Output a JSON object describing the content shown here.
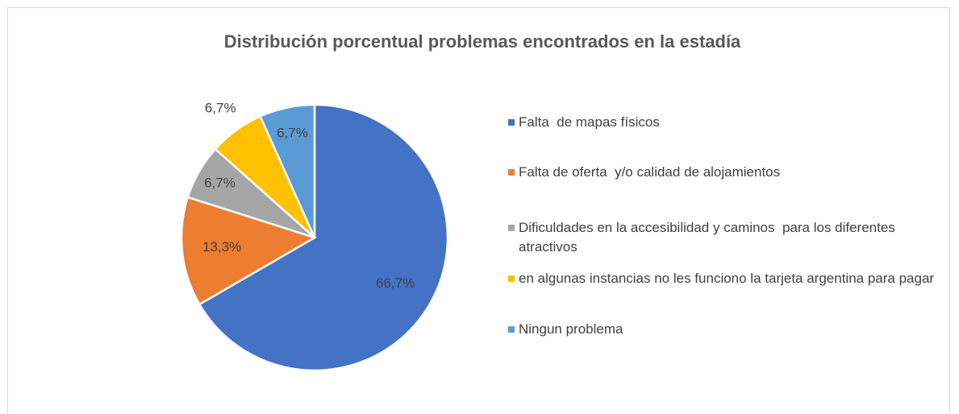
{
  "chart_data": {
    "type": "pie",
    "title": "Distribución porcentual problemas encontrados en la estadía",
    "categories": [
      "Falta  de mapas físicos",
      "Falta de oferta  y/o calidad de alojamientos",
      "Dificuldades en la accesibilidad y caminos  para los diferentes atractivos",
      "en algunas instancias no les funciono la tarjeta argentina para pagar",
      "Ningun problema"
    ],
    "values": [
      66.7,
      13.3,
      6.7,
      6.7,
      6.7
    ],
    "value_labels": [
      "66,7%",
      "13,3%",
      "6,7%",
      "6,7%",
      "6,7%"
    ],
    "colors": [
      "#4472c4",
      "#ed7d31",
      "#a5a5a5",
      "#ffc000",
      "#5b9bd5"
    ],
    "legend": "right"
  }
}
